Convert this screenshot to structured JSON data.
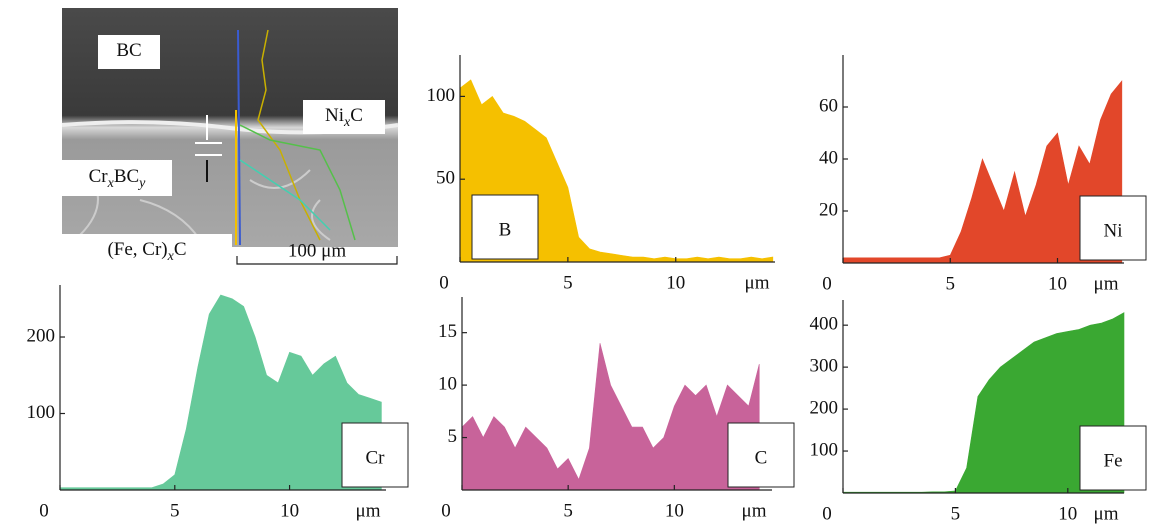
{
  "image": {
    "labels": [
      [
        "BC"
      ],
      [
        "Ni",
        "x",
        "C"
      ],
      [
        "Cr",
        "x",
        "BC",
        "y"
      ],
      [
        "(Fe, Cr)",
        "x",
        "C"
      ]
    ],
    "scale_bar": "100 μm"
  },
  "chart_data": [
    {
      "type": "area",
      "label": "B",
      "color": "#f5c000",
      "x_label": "μm",
      "legend": "lower left",
      "x": [
        0,
        0.5,
        1,
        1.5,
        2,
        2.5,
        3,
        3.5,
        4,
        4.5,
        5,
        5.5,
        6,
        6.5,
        7,
        7.5,
        8,
        8.5,
        9,
        9.5,
        10,
        10.5,
        11,
        11.5,
        12,
        12.5,
        13,
        13.5,
        14,
        14.5
      ],
      "values": [
        105,
        110,
        95,
        100,
        90,
        88,
        85,
        80,
        75,
        60,
        45,
        15,
        8,
        6,
        5,
        4,
        3,
        3,
        2,
        3,
        2,
        2,
        3,
        2,
        3,
        2,
        2,
        3,
        2,
        3
      ],
      "xlim": [
        0,
        14.6
      ],
      "ylim": [
        0,
        125
      ],
      "xticks": [
        0,
        5,
        10
      ],
      "yticks": [
        50,
        100
      ]
    },
    {
      "type": "area",
      "label": "Ni",
      "color": "#e2472a",
      "x_label": "μm",
      "legend": "lower right",
      "x": [
        0,
        0.5,
        1,
        1.5,
        2,
        2.5,
        3,
        3.5,
        4,
        4.5,
        5,
        5.5,
        6,
        6.5,
        7,
        7.5,
        8,
        8.5,
        9,
        9.5,
        10,
        10.5,
        11,
        11.5,
        12,
        12.5,
        13
      ],
      "values": [
        2,
        2,
        2,
        2,
        2,
        2,
        2,
        2,
        2,
        2,
        3,
        12,
        25,
        40,
        30,
        20,
        35,
        18,
        30,
        45,
        50,
        30,
        45,
        38,
        55,
        65,
        70
      ],
      "xlim": [
        0,
        13.1
      ],
      "ylim": [
        0,
        80
      ],
      "xticks": [
        0,
        5,
        10
      ],
      "yticks": [
        20,
        40,
        60
      ]
    },
    {
      "type": "area",
      "label": "Cr",
      "color": "#66c99a",
      "x_label": "μm",
      "legend": "lower right",
      "x": [
        0,
        0.5,
        1,
        1.5,
        2,
        2.5,
        3,
        3.5,
        4,
        4.5,
        5,
        5.5,
        6,
        6.5,
        7,
        7.5,
        8,
        8.5,
        9,
        9.5,
        10,
        10.5,
        11,
        11.5,
        12,
        12.5,
        13,
        13.5,
        14
      ],
      "values": [
        3,
        3,
        3,
        3,
        3,
        3,
        3,
        3,
        3,
        8,
        20,
        80,
        160,
        230,
        255,
        250,
        240,
        200,
        150,
        140,
        180,
        175,
        150,
        165,
        175,
        140,
        125,
        120,
        115
      ],
      "xlim": [
        0,
        14.2
      ],
      "ylim": [
        0,
        268
      ],
      "xticks": [
        0,
        5,
        10
      ],
      "yticks": [
        100,
        200
      ]
    },
    {
      "type": "area",
      "label": "C",
      "color": "#c8639a",
      "x_label": "μm",
      "legend": "lower right",
      "x": [
        0,
        0.5,
        1,
        1.5,
        2,
        2.5,
        3,
        3.5,
        4,
        4.5,
        5,
        5.5,
        6,
        6.5,
        7,
        7.5,
        8,
        8.5,
        9,
        9.5,
        10,
        10.5,
        11,
        11.5,
        12,
        12.5,
        13,
        13.5,
        14
      ],
      "values": [
        6,
        7,
        5,
        7,
        6,
        4,
        6,
        5,
        4,
        2,
        3,
        1,
        4,
        14,
        10,
        8,
        6,
        6,
        4,
        5,
        8,
        10,
        9,
        10,
        7,
        10,
        9,
        8,
        12
      ],
      "xlim": [
        0,
        14.6
      ],
      "ylim": [
        0,
        18.4
      ],
      "xticks": [
        0,
        5,
        10
      ],
      "yticks": [
        5,
        10,
        15
      ]
    },
    {
      "type": "area",
      "label": "Fe",
      "color": "#3aa832",
      "x_label": "μm",
      "legend": "lower right",
      "x": [
        0,
        0.5,
        1,
        1.5,
        2,
        2.5,
        3,
        3.5,
        4,
        4.5,
        5,
        5.5,
        6,
        6.5,
        7,
        7.5,
        8,
        8.5,
        9,
        9.5,
        10,
        10.5,
        11,
        11.5,
        12,
        12.5
      ],
      "values": [
        2,
        2,
        2,
        2,
        2,
        2,
        2,
        2,
        3,
        3,
        5,
        60,
        230,
        270,
        300,
        320,
        340,
        360,
        370,
        380,
        385,
        390,
        400,
        405,
        415,
        430
      ],
      "xlim": [
        0,
        12.5
      ],
      "ylim": [
        0,
        460
      ],
      "xticks": [
        0,
        5,
        10
      ],
      "yticks": [
        100,
        200,
        300,
        400
      ]
    }
  ]
}
